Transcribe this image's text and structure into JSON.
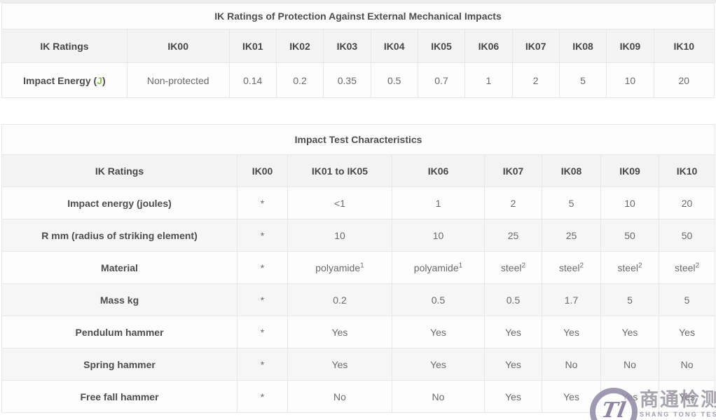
{
  "colors": {
    "accent_green": "#8bc34a",
    "header_bg": "#f3f3f3",
    "stripe_bg": "#f6f6f6",
    "border": "#e7e7e7",
    "watermark_purple": "#7c7194"
  },
  "table1": {
    "title": "IK Ratings of Protection Against External Mechanical Impacts",
    "header": [
      "IK Ratings",
      "IK00",
      "IK01",
      "IK02",
      "IK03",
      "IK04",
      "IK05",
      "IK06",
      "IK07",
      "IK08",
      "IK09",
      "IK10"
    ],
    "rows": [
      {
        "label_parts": [
          {
            "t": "Impact Energy ("
          },
          {
            "t": "J",
            "accent": true
          },
          {
            "t": ")"
          }
        ],
        "cells": [
          "Non-protected",
          "0.14",
          "0.2",
          "0.35",
          "0.5",
          "0.7",
          "1",
          "2",
          "5",
          "10",
          "20"
        ]
      }
    ]
  },
  "table2": {
    "title": "Impact Test Characteristics",
    "header": [
      "IK Ratings",
      "IK00",
      "IK01 to IK05",
      "IK06",
      "IK07",
      "IK08",
      "IK09",
      "IK10"
    ],
    "rows": [
      {
        "label": "Impact energy (joules)",
        "cells": [
          "*",
          "<1",
          "1",
          "2",
          "5",
          "10",
          "20"
        ]
      },
      {
        "label": "R mm (radius of striking element)",
        "cells": [
          "*",
          "10",
          "10",
          "25",
          "25",
          "50",
          "50"
        ]
      },
      {
        "label": "Material",
        "cells": [
          "*",
          {
            "t": "polyamide",
            "sup": "1"
          },
          {
            "t": "polyamide",
            "sup": "1"
          },
          {
            "t": "steel",
            "sup": "2"
          },
          {
            "t": "steel",
            "sup": "2"
          },
          {
            "t": "steel",
            "sup": "2"
          },
          {
            "t": "steel",
            "sup": "2"
          }
        ]
      },
      {
        "label": "Mass kg",
        "cells": [
          "*",
          "0.2",
          "0.5",
          "0.5",
          "1.7",
          "5",
          "5"
        ]
      },
      {
        "label": "Pendulum hammer",
        "cells": [
          "*",
          "Yes",
          "Yes",
          "Yes",
          "Yes",
          "Yes",
          "Yes"
        ]
      },
      {
        "label": "Spring hammer",
        "cells": [
          "*",
          "Yes",
          "Yes",
          "Yes",
          "No",
          "No",
          "No"
        ]
      },
      {
        "label": "Free fall hammer",
        "cells": [
          "*",
          "No",
          "No",
          "Yes",
          "Yes",
          "Yes",
          "Yes"
        ]
      }
    ]
  },
  "watermark": {
    "monogram": "Tl",
    "cn": "商通检测",
    "en": "SHANG TONG TESTING"
  }
}
